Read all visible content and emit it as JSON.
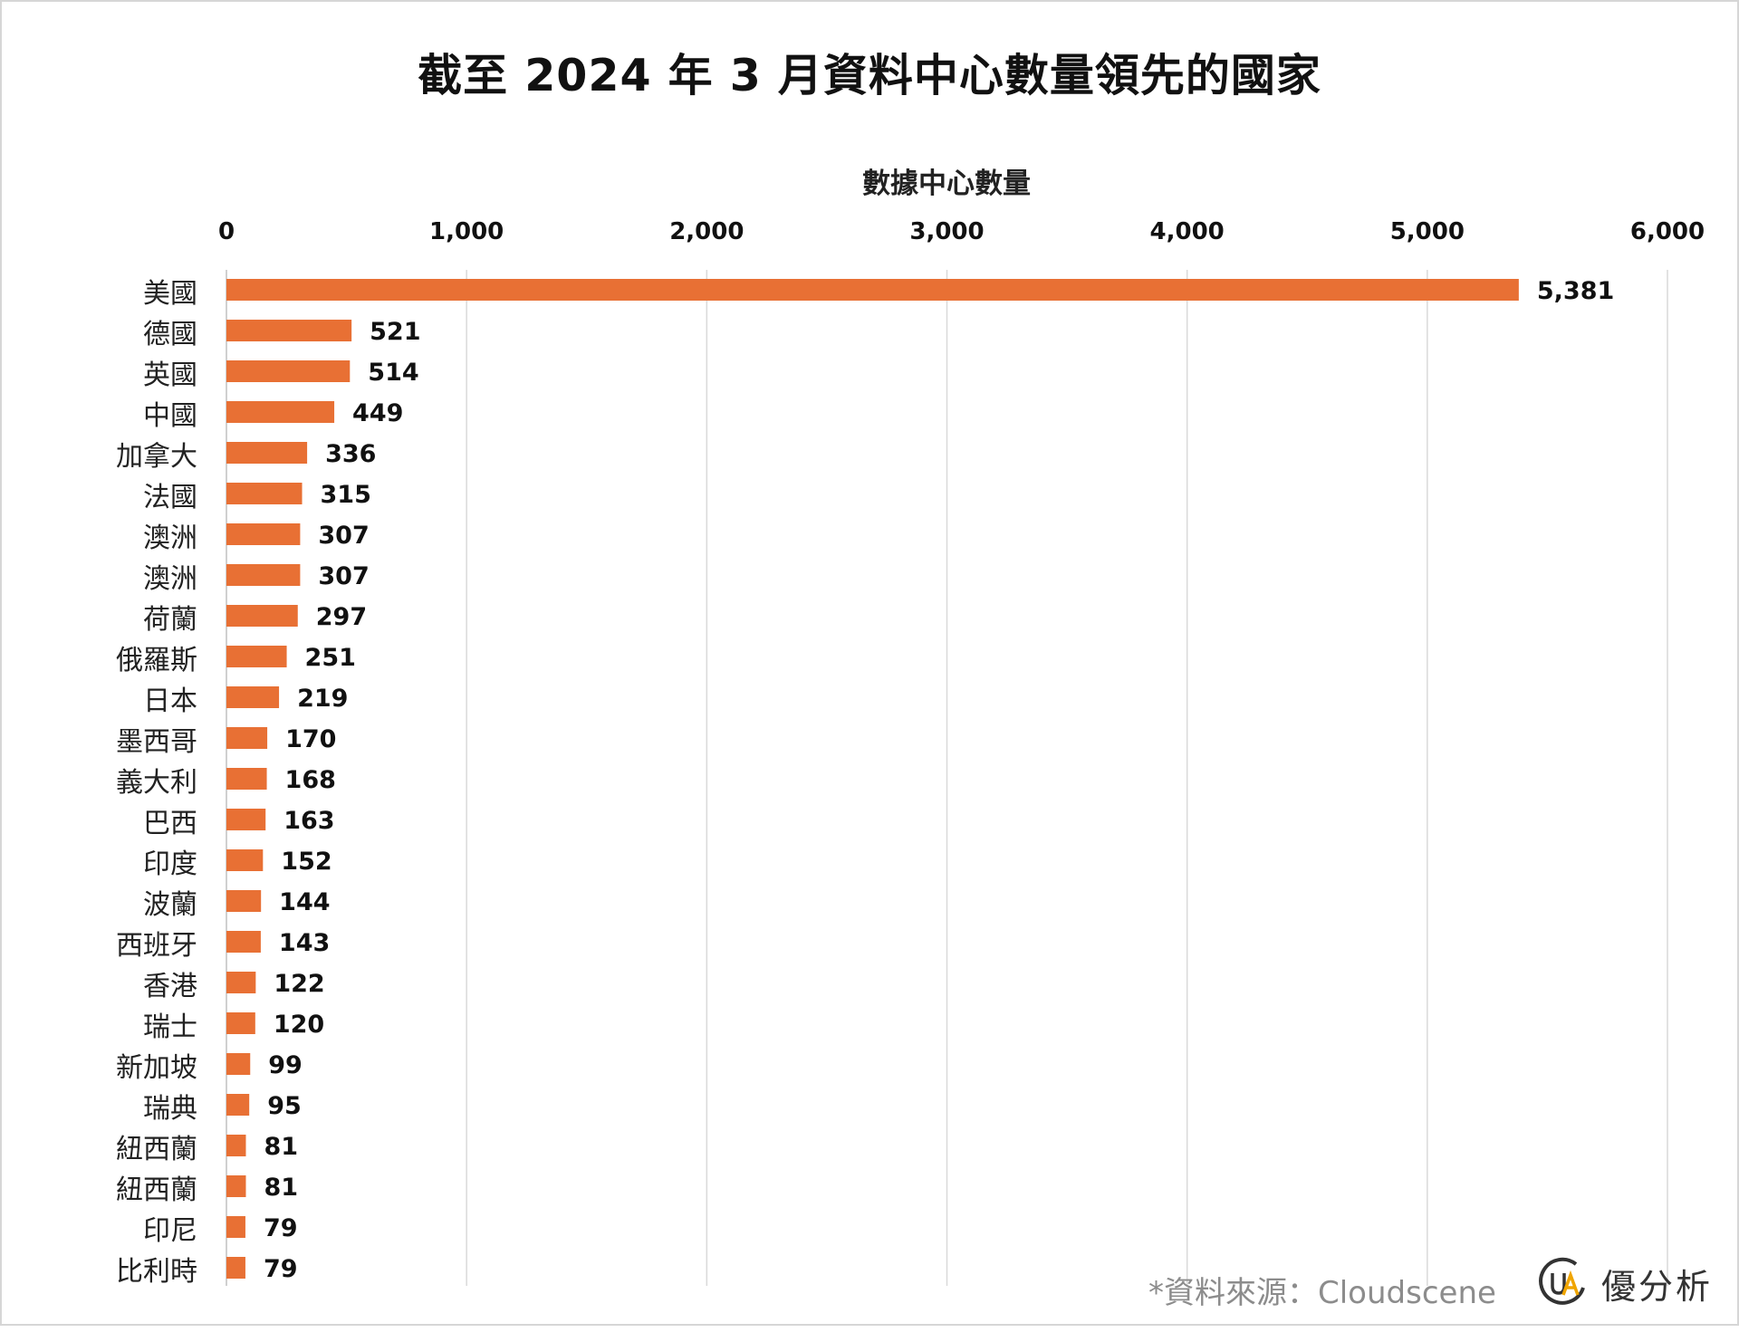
{
  "chart_data": {
    "type": "bar",
    "orientation": "horizontal",
    "title": "截至 2024 年 3 月資料中心數量領先的國家",
    "xlabel": "數據中心數量",
    "ylabel": "",
    "xlim": [
      0,
      6000
    ],
    "x_ticks": [
      "0",
      "1,000",
      "2,000",
      "3,000",
      "4,000",
      "5,000",
      "6,000"
    ],
    "grid": "vertical",
    "bar_color": "#E87034",
    "categories": [
      "美國",
      "德國",
      "英國",
      "中國",
      "加拿大",
      "法國",
      "澳洲",
      "澳洲",
      "荷蘭",
      "俄羅斯",
      "日本",
      "墨西哥",
      "義大利",
      "巴西",
      "印度",
      "波蘭",
      "西班牙",
      "香港",
      "瑞士",
      "新加坡",
      "瑞典",
      "紐西蘭",
      "紐西蘭",
      "印尼",
      "比利時"
    ],
    "values": [
      5381,
      521,
      514,
      449,
      336,
      315,
      307,
      307,
      297,
      251,
      219,
      170,
      168,
      163,
      152,
      144,
      143,
      122,
      120,
      99,
      95,
      81,
      81,
      79,
      79
    ],
    "value_labels": [
      "5,381",
      "521",
      "514",
      "449",
      "336",
      "315",
      "307",
      "307",
      "297",
      "251",
      "219",
      "170",
      "168",
      "163",
      "152",
      "144",
      "143",
      "122",
      "120",
      "99",
      "95",
      "81",
      "81",
      "79",
      "79"
    ]
  },
  "footer": {
    "source": "*資料來源：Cloudscene",
    "brand_name": "優分析",
    "logo_icon": "ua-logo-icon"
  },
  "colors": {
    "bar": "#E87034",
    "grid": "#d9d9d9",
    "logo_accent": "#F0A500",
    "logo_dark": "#333333"
  }
}
